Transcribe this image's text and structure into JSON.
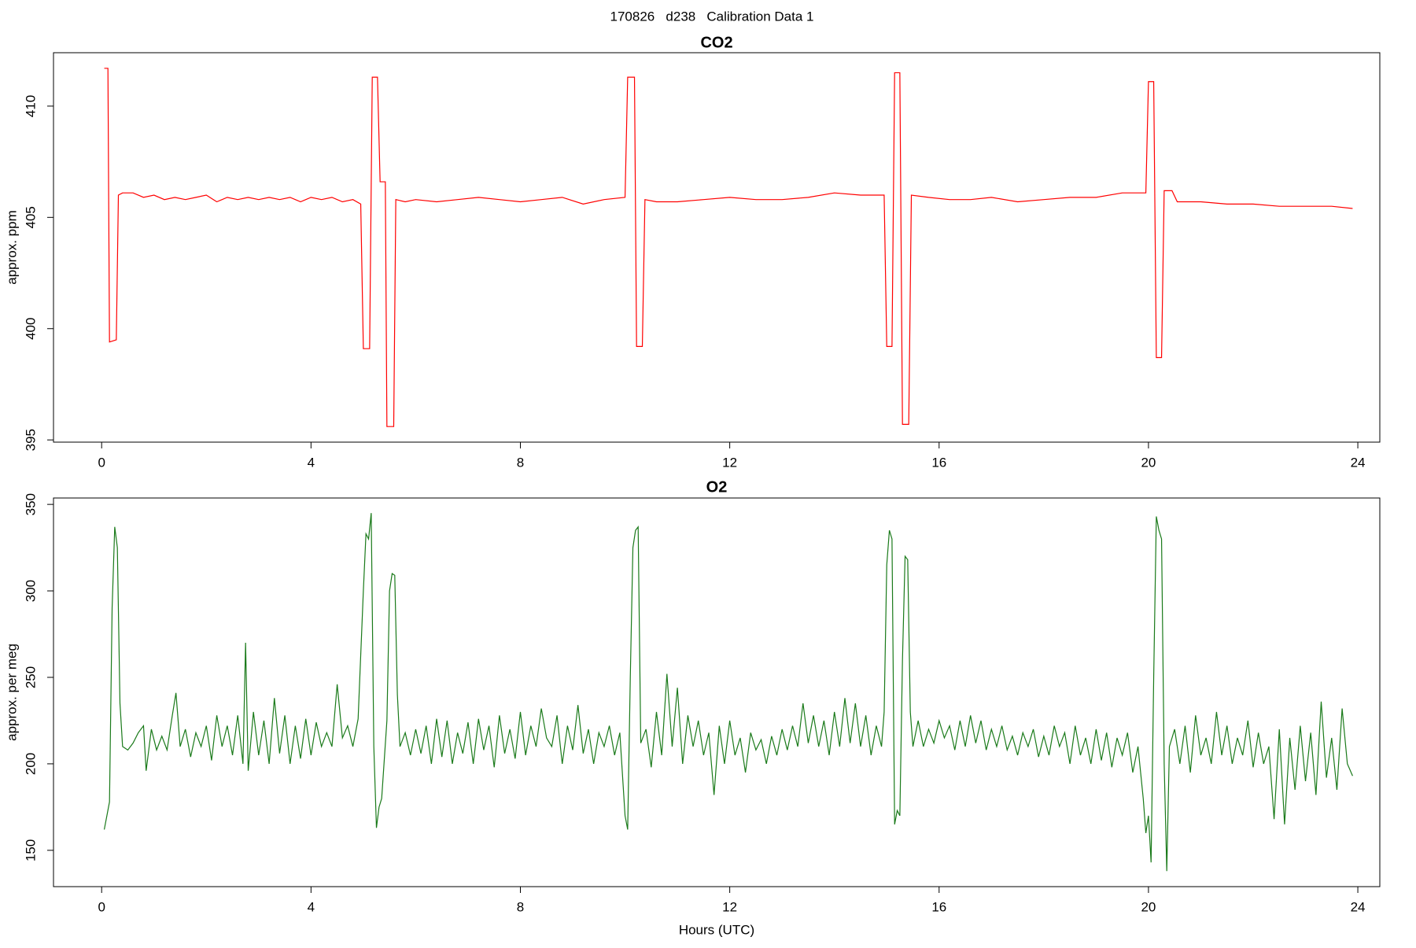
{
  "title": "170826   d238   Calibration Data 1",
  "chart_data": [
    {
      "type": "line",
      "title": "CO2",
      "ylabel": "approx. ppm",
      "xlim": [
        -0.92,
        24.42
      ],
      "xticks": [
        0,
        4,
        8,
        12,
        16,
        20,
        24
      ],
      "ylim": [
        394.9,
        412.4
      ],
      "yticks": [
        395,
        400,
        405,
        410
      ],
      "x": [
        0.05,
        0.12,
        0.15,
        0.28,
        0.32,
        0.4,
        0.6,
        0.8,
        1.0,
        1.2,
        1.4,
        1.6,
        1.8,
        2.0,
        2.2,
        2.4,
        2.6,
        2.8,
        3.0,
        3.2,
        3.4,
        3.6,
        3.8,
        4.0,
        4.2,
        4.4,
        4.6,
        4.8,
        4.95,
        5.0,
        5.12,
        5.17,
        5.27,
        5.32,
        5.42,
        5.45,
        5.58,
        5.62,
        5.8,
        6.0,
        6.4,
        6.8,
        7.2,
        7.6,
        8.0,
        8.4,
        8.8,
        9.2,
        9.6,
        10.0,
        10.05,
        10.18,
        10.22,
        10.33,
        10.38,
        10.6,
        11.0,
        11.5,
        12.0,
        12.5,
        13.0,
        13.5,
        14.0,
        14.5,
        14.95,
        15.0,
        15.1,
        15.15,
        15.25,
        15.3,
        15.42,
        15.47,
        15.8,
        16.2,
        16.6,
        17.0,
        17.5,
        18.0,
        18.5,
        19.0,
        19.5,
        19.95,
        20.0,
        20.1,
        20.15,
        20.25,
        20.3,
        20.45,
        20.55,
        21.0,
        21.5,
        22.0,
        22.5,
        23.0,
        23.5,
        23.9
      ],
      "series": [
        {
          "color": "#ff0000",
          "values": [
            411.7,
            411.7,
            399.4,
            399.5,
            406.0,
            406.1,
            406.1,
            405.9,
            406.0,
            405.8,
            405.9,
            405.8,
            405.9,
            406.0,
            405.7,
            405.9,
            405.8,
            405.9,
            405.8,
            405.9,
            405.8,
            405.9,
            405.7,
            405.9,
            405.8,
            405.9,
            405.7,
            405.8,
            405.6,
            399.1,
            399.1,
            411.3,
            411.3,
            406.6,
            406.6,
            395.6,
            395.6,
            405.8,
            405.7,
            405.8,
            405.7,
            405.8,
            405.9,
            405.8,
            405.7,
            405.8,
            405.9,
            405.6,
            405.8,
            405.9,
            411.3,
            411.3,
            399.2,
            399.2,
            405.8,
            405.7,
            405.7,
            405.8,
            405.9,
            405.8,
            405.8,
            405.9,
            406.1,
            406.0,
            406.0,
            399.2,
            399.2,
            411.5,
            411.5,
            395.7,
            395.7,
            406.0,
            405.9,
            405.8,
            405.8,
            405.9,
            405.7,
            405.8,
            405.9,
            405.9,
            406.1,
            406.1,
            411.1,
            411.1,
            398.7,
            398.7,
            406.2,
            406.2,
            405.7,
            405.7,
            405.6,
            405.6,
            405.5,
            405.5,
            405.5,
            405.4
          ]
        }
      ]
    },
    {
      "type": "line",
      "title": "O2",
      "ylabel": "approx. per meg",
      "xlabel": "Hours (UTC)",
      "xlim": [
        -0.92,
        24.42
      ],
      "xticks": [
        0,
        4,
        8,
        12,
        16,
        20,
        24
      ],
      "ylim": [
        129,
        353.7
      ],
      "yticks": [
        150,
        200,
        250,
        300,
        350
      ],
      "x": [
        0.05,
        0.1,
        0.15,
        0.2,
        0.25,
        0.3,
        0.35,
        0.4,
        0.5,
        0.6,
        0.7,
        0.8,
        0.85,
        0.95,
        1.05,
        1.15,
        1.25,
        1.35,
        1.42,
        1.5,
        1.6,
        1.7,
        1.8,
        1.9,
        2.0,
        2.1,
        2.2,
        2.3,
        2.4,
        2.5,
        2.6,
        2.7,
        2.75,
        2.8,
        2.9,
        3.0,
        3.1,
        3.2,
        3.3,
        3.4,
        3.5,
        3.6,
        3.7,
        3.8,
        3.9,
        4.0,
        4.1,
        4.2,
        4.3,
        4.4,
        4.5,
        4.6,
        4.7,
        4.8,
        4.9,
        5.0,
        5.05,
        5.1,
        5.15,
        5.2,
        5.25,
        5.3,
        5.35,
        5.45,
        5.5,
        5.55,
        5.6,
        5.65,
        5.7,
        5.8,
        5.9,
        6.0,
        6.1,
        6.2,
        6.3,
        6.4,
        6.5,
        6.6,
        6.7,
        6.8,
        6.9,
        7.0,
        7.1,
        7.2,
        7.3,
        7.4,
        7.5,
        7.6,
        7.7,
        7.8,
        7.9,
        8.0,
        8.1,
        8.2,
        8.3,
        8.4,
        8.5,
        8.6,
        8.7,
        8.8,
        8.9,
        9.0,
        9.1,
        9.2,
        9.3,
        9.4,
        9.5,
        9.6,
        9.7,
        9.8,
        9.9,
        10.0,
        10.05,
        10.1,
        10.15,
        10.2,
        10.25,
        10.3,
        10.4,
        10.5,
        10.6,
        10.7,
        10.8,
        10.9,
        11.0,
        11.1,
        11.2,
        11.3,
        11.4,
        11.5,
        11.6,
        11.7,
        11.8,
        11.9,
        12.0,
        12.1,
        12.2,
        12.3,
        12.4,
        12.5,
        12.6,
        12.7,
        12.8,
        12.9,
        13.0,
        13.1,
        13.2,
        13.3,
        13.4,
        13.5,
        13.6,
        13.7,
        13.8,
        13.9,
        14.0,
        14.1,
        14.2,
        14.3,
        14.4,
        14.5,
        14.6,
        14.7,
        14.8,
        14.9,
        14.95,
        15.0,
        15.05,
        15.1,
        15.15,
        15.2,
        15.25,
        15.3,
        15.35,
        15.4,
        15.45,
        15.5,
        15.6,
        15.7,
        15.8,
        15.9,
        16.0,
        16.1,
        16.2,
        16.3,
        16.4,
        16.5,
        16.6,
        16.7,
        16.8,
        16.9,
        17.0,
        17.1,
        17.2,
        17.3,
        17.4,
        17.5,
        17.6,
        17.7,
        17.8,
        17.9,
        18.0,
        18.1,
        18.2,
        18.3,
        18.4,
        18.5,
        18.6,
        18.7,
        18.8,
        18.9,
        19.0,
        19.1,
        19.2,
        19.3,
        19.4,
        19.5,
        19.6,
        19.7,
        19.8,
        19.9,
        19.95,
        20.0,
        20.05,
        20.1,
        20.15,
        20.2,
        20.25,
        20.3,
        20.35,
        20.4,
        20.5,
        20.6,
        20.7,
        20.8,
        20.9,
        21.0,
        21.1,
        21.2,
        21.3,
        21.4,
        21.5,
        21.6,
        21.7,
        21.8,
        21.9,
        22.0,
        22.1,
        22.2,
        22.3,
        22.4,
        22.5,
        22.6,
        22.7,
        22.8,
        22.9,
        23.0,
        23.1,
        23.2,
        23.3,
        23.4,
        23.5,
        23.6,
        23.7,
        23.8,
        23.9
      ],
      "series": [
        {
          "color": "#1a7a1a",
          "values": [
            162,
            170,
            178,
            290,
            337,
            325,
            235,
            210,
            208,
            212,
            218,
            222,
            196,
            220,
            208,
            216,
            208,
            228,
            241,
            210,
            220,
            204,
            218,
            210,
            222,
            202,
            228,
            210,
            222,
            205,
            228,
            200,
            270,
            196,
            230,
            205,
            225,
            200,
            238,
            206,
            228,
            200,
            222,
            203,
            226,
            205,
            224,
            210,
            218,
            210,
            246,
            215,
            222,
            210,
            226,
            300,
            333,
            330,
            345,
            210,
            163,
            175,
            180,
            225,
            300,
            310,
            309,
            240,
            210,
            218,
            205,
            220,
            206,
            222,
            200,
            226,
            204,
            225,
            200,
            218,
            206,
            224,
            200,
            226,
            208,
            222,
            198,
            228,
            206,
            220,
            203,
            230,
            205,
            222,
            210,
            232,
            215,
            210,
            228,
            200,
            222,
            208,
            234,
            206,
            220,
            200,
            218,
            210,
            222,
            205,
            218,
            170,
            162,
            250,
            325,
            335,
            337,
            212,
            220,
            198,
            230,
            205,
            252,
            210,
            244,
            200,
            228,
            210,
            225,
            205,
            218,
            182,
            222,
            200,
            225,
            205,
            215,
            195,
            218,
            208,
            214,
            200,
            216,
            205,
            220,
            208,
            222,
            210,
            235,
            212,
            228,
            210,
            225,
            205,
            230,
            210,
            238,
            212,
            235,
            210,
            228,
            205,
            222,
            210,
            230,
            315,
            335,
            330,
            165,
            173,
            170,
            260,
            320,
            318,
            230,
            210,
            225,
            210,
            220,
            212,
            225,
            215,
            222,
            208,
            225,
            210,
            228,
            212,
            225,
            208,
            220,
            210,
            222,
            208,
            216,
            205,
            218,
            210,
            220,
            204,
            216,
            205,
            222,
            210,
            218,
            200,
            222,
            205,
            215,
            200,
            220,
            202,
            218,
            198,
            215,
            205,
            218,
            195,
            210,
            180,
            160,
            170,
            143,
            250,
            343,
            335,
            330,
            200,
            138,
            210,
            220,
            200,
            222,
            195,
            228,
            205,
            215,
            200,
            230,
            205,
            222,
            200,
            215,
            205,
            225,
            198,
            218,
            200,
            210,
            168,
            220,
            165,
            215,
            185,
            222,
            190,
            218,
            182,
            236,
            192,
            215,
            185,
            232,
            200,
            193
          ]
        }
      ]
    }
  ]
}
